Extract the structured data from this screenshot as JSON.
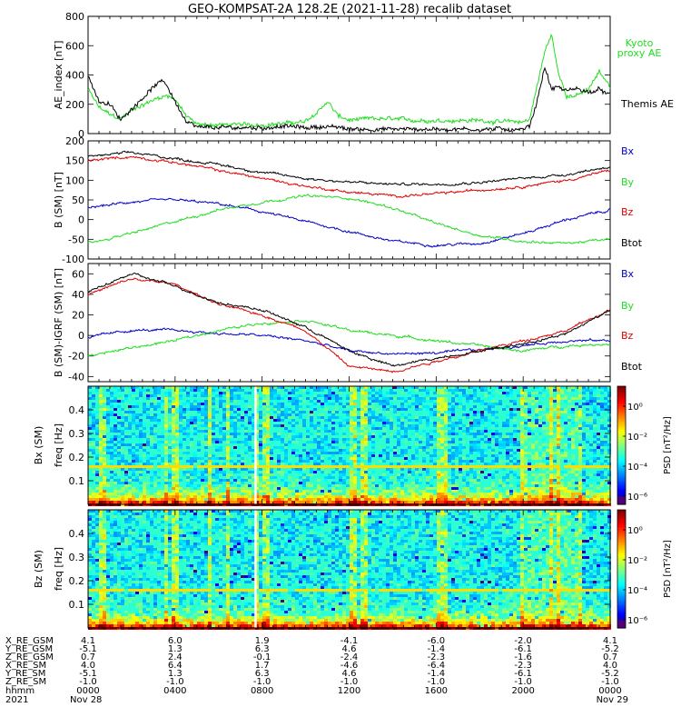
{
  "title": "GEO-KOMPSAT-2A 128.2E (2021-11-28) recalib dataset",
  "colors": {
    "black": "#000000",
    "blue": "#0000c8",
    "green": "#20dd20",
    "red": "#e00000",
    "kyoto": "#20dd20"
  },
  "chart_data": [
    {
      "type": "line",
      "ylabel": "AE_index [nT]",
      "ylim": [
        0,
        800
      ],
      "yticks": [
        "0",
        "200",
        "400",
        "600",
        "800"
      ],
      "legend": [
        "Kyoto proxy AE",
        "Themis AE"
      ],
      "series": [
        {
          "name": "Kyoto proxy AE",
          "color": "green",
          "x": [
            0,
            0.5,
            1,
            1.5,
            2,
            3,
            3.5,
            4,
            4.5,
            5,
            6,
            7,
            8,
            9,
            10,
            10.5,
            11,
            11.5,
            12,
            13,
            14,
            15,
            16,
            17,
            18,
            19,
            20,
            20.3,
            20.6,
            21,
            21.3,
            21.6,
            22,
            22.5,
            23,
            23.5,
            24
          ],
          "y": [
            300,
            180,
            130,
            100,
            160,
            230,
            260,
            240,
            120,
            60,
            60,
            60,
            60,
            70,
            80,
            140,
            220,
            120,
            90,
            100,
            100,
            90,
            90,
            90,
            90,
            80,
            80,
            100,
            300,
            560,
            680,
            420,
            260,
            260,
            300,
            420,
            320
          ]
        },
        {
          "name": "Themis AE",
          "color": "black",
          "x": [
            0,
            0.5,
            1,
            1.5,
            2,
            3,
            3.5,
            4,
            4.5,
            5,
            6,
            7,
            8,
            9,
            10,
            11,
            12,
            13,
            14,
            15,
            16,
            17,
            18,
            19,
            20,
            20.3,
            20.6,
            21,
            21.3,
            21.6,
            22,
            22.5,
            23,
            23.5,
            24
          ],
          "y": [
            400,
            220,
            200,
            90,
            170,
            320,
            360,
            220,
            80,
            40,
            40,
            40,
            40,
            50,
            40,
            50,
            30,
            30,
            30,
            30,
            30,
            30,
            30,
            30,
            30,
            50,
            200,
            460,
            300,
            320,
            290,
            310,
            280,
            300,
            260
          ]
        }
      ]
    },
    {
      "type": "line",
      "ylabel": "B (SM) [nT]",
      "ylim": [
        -100,
        200
      ],
      "yticks": [
        "-100",
        "-50",
        "0",
        "50",
        "100",
        "150",
        "200"
      ],
      "legend": [
        "Bx",
        "By",
        "Bz",
        "Btot"
      ],
      "series": [
        {
          "name": "Bx",
          "color": "blue",
          "x": [
            0,
            2,
            4,
            6,
            8,
            10,
            12,
            14,
            16,
            18,
            20,
            22,
            24
          ],
          "y": [
            30,
            45,
            50,
            40,
            20,
            -5,
            -30,
            -55,
            -65,
            -60,
            -35,
            0,
            25
          ]
        },
        {
          "name": "By",
          "color": "green",
          "x": [
            0,
            2,
            4,
            6,
            8,
            10,
            12,
            14,
            16,
            18,
            20,
            22,
            24
          ],
          "y": [
            -60,
            -35,
            -5,
            25,
            45,
            60,
            55,
            30,
            -10,
            -40,
            -55,
            -60,
            -50
          ]
        },
        {
          "name": "Bz",
          "color": "red",
          "x": [
            0,
            2,
            4,
            6,
            8,
            10,
            12,
            14,
            16,
            18,
            20,
            22,
            24
          ],
          "y": [
            150,
            160,
            145,
            125,
            105,
            85,
            70,
            60,
            65,
            75,
            85,
            100,
            125
          ]
        },
        {
          "name": "Btot",
          "color": "black",
          "x": [
            0,
            2,
            4,
            6,
            8,
            10,
            12,
            14,
            16,
            18,
            20,
            22,
            24
          ],
          "y": [
            160,
            170,
            155,
            140,
            120,
            105,
            95,
            90,
            90,
            95,
            105,
            115,
            135
          ]
        }
      ]
    },
    {
      "type": "line",
      "ylabel": "B (SM)-IGRF (SM) [nT]",
      "ylim": [
        -45,
        70
      ],
      "yticks": [
        "-40",
        "-20",
        "0",
        "20",
        "40",
        "60"
      ],
      "legend": [
        "Bx",
        "By",
        "Bz",
        "Btot"
      ],
      "series": [
        {
          "name": "Bx",
          "color": "blue",
          "x": [
            0,
            2,
            4,
            6,
            8,
            10,
            12,
            14,
            16,
            18,
            20,
            22,
            24
          ],
          "y": [
            -2,
            5,
            5,
            2,
            0,
            -5,
            -15,
            -18,
            -17,
            -14,
            -10,
            -5,
            -5
          ]
        },
        {
          "name": "By",
          "color": "green",
          "x": [
            0,
            2,
            4,
            6,
            8,
            10,
            12,
            14,
            16,
            18,
            20,
            22,
            24
          ],
          "y": [
            -20,
            -12,
            -5,
            5,
            12,
            15,
            5,
            0,
            -5,
            -10,
            -15,
            -10,
            -8
          ]
        },
        {
          "name": "Bz",
          "color": "red",
          "x": [
            0,
            2,
            4,
            6,
            8,
            10,
            12,
            14,
            16,
            18,
            20,
            22,
            24
          ],
          "y": [
            40,
            55,
            50,
            30,
            20,
            5,
            -30,
            -35,
            -25,
            -15,
            -5,
            5,
            25
          ]
        },
        {
          "name": "Btot",
          "color": "black",
          "x": [
            0,
            2,
            4,
            6,
            8,
            10,
            12,
            14,
            16,
            18,
            20,
            22,
            24
          ],
          "y": [
            42,
            60,
            48,
            32,
            25,
            8,
            -15,
            -30,
            -22,
            -15,
            -8,
            2,
            25
          ]
        }
      ]
    },
    {
      "type": "heatmap",
      "ylabel": "Bx (SM) freq [Hz]",
      "ylim": [
        0,
        0.5
      ],
      "yticks": [
        "0.1",
        "0.2",
        "0.3",
        "0.4"
      ],
      "colorbar": {
        "label": "PSD [nT²/Hz]",
        "ticks": [
          "10⁰",
          "10⁻²",
          "10⁻⁴",
          "10⁻⁶"
        ]
      }
    },
    {
      "type": "heatmap",
      "ylabel": "Bz (SM) freq [Hz]",
      "ylim": [
        0,
        0.5
      ],
      "yticks": [
        "0.1",
        "0.2",
        "0.3",
        "0.4"
      ],
      "colorbar": {
        "label": "PSD [nT²/Hz]",
        "ticks": [
          "10⁰",
          "10⁻²",
          "10⁻⁴",
          "10⁻⁶"
        ]
      }
    }
  ],
  "ephemeris": {
    "row_labels": [
      "X_RE_GSM",
      "Y_RE_GSM",
      "Z_RE_GSM",
      "X_RE_SM",
      "Y_RE_SM",
      "Z_RE_SM",
      "hhmm",
      "2021"
    ],
    "columns": [
      [
        "4.1",
        "-5.1",
        "0.7",
        "4.0",
        "-5.1",
        "-1.0",
        "0000",
        "Nov 28"
      ],
      [
        "6.0",
        "1.3",
        "2.4",
        "6.4",
        "1.3",
        "-1.0",
        "0400",
        ""
      ],
      [
        "1.9",
        "6.3",
        "-0.1",
        "1.7",
        "6.3",
        "-1.0",
        "0800",
        ""
      ],
      [
        "-4.1",
        "4.6",
        "-2.4",
        "-4.6",
        "4.6",
        "-1.0",
        "1200",
        ""
      ],
      [
        "-6.0",
        "-1.4",
        "-2.3",
        "-6.4",
        "-1.4",
        "-1.0",
        "1600",
        ""
      ],
      [
        "-2.0",
        "-6.1",
        "-1.6",
        "-2.3",
        "-6.1",
        "-1.0",
        "2000",
        ""
      ],
      [
        "4.1",
        "-5.2",
        "0.7",
        "4.0",
        "-5.2",
        "-1.0",
        "0000",
        "Nov 29"
      ]
    ]
  }
}
